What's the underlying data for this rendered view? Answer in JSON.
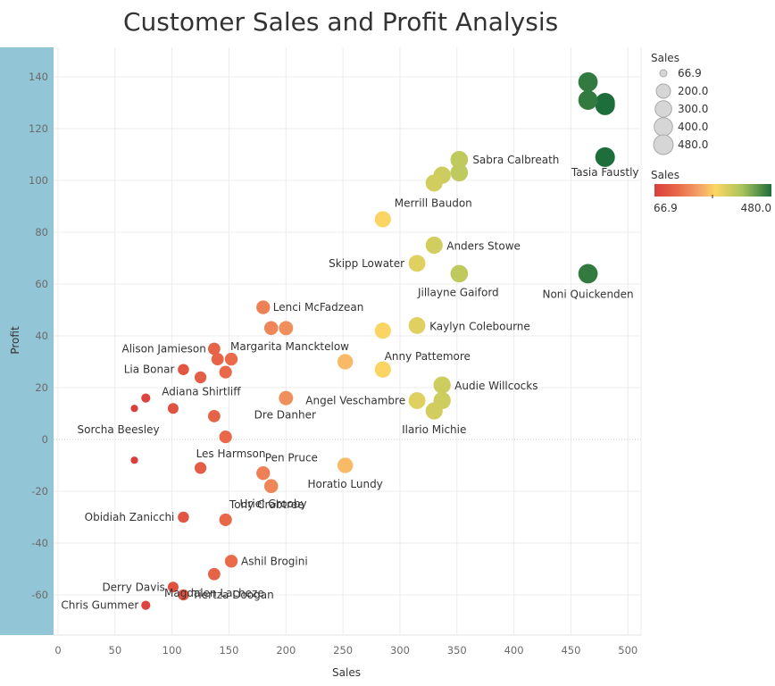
{
  "title": "Customer Sales and Profit Analysis",
  "chart_data": {
    "type": "scatter",
    "title": "Customer Sales and Profit Analysis",
    "xlabel": "Sales",
    "ylabel": "Profit",
    "xlim": [
      0,
      510
    ],
    "ylim": [
      -75,
      150
    ],
    "x_ticks": [
      0,
      50,
      100,
      150,
      200,
      250,
      300,
      350,
      400,
      450,
      500
    ],
    "y_ticks": [
      -60,
      -40,
      -20,
      0,
      20,
      40,
      60,
      80,
      100,
      120,
      140
    ],
    "grid": true,
    "size_encoding": "Sales",
    "color_encoding": "Sales",
    "color_scale": [
      "#d9403b",
      "#f4a86a",
      "#fdd663",
      "#a8c45c",
      "#2d8a4e",
      "#1e6e3b"
    ],
    "points": [
      {
        "x": 465,
        "y": 138,
        "label": ""
      },
      {
        "x": 465,
        "y": 131,
        "label": ""
      },
      {
        "x": 480,
        "y": 130,
        "label": ""
      },
      {
        "x": 480,
        "y": 129,
        "label": ""
      },
      {
        "x": 480,
        "y": 109,
        "label": "Tasia Faustly"
      },
      {
        "x": 465,
        "y": 64,
        "label": "Noni Quickenden"
      },
      {
        "x": 352,
        "y": 108,
        "label": "Sabra Calbreath"
      },
      {
        "x": 352,
        "y": 103,
        "label": ""
      },
      {
        "x": 337,
        "y": 102,
        "label": ""
      },
      {
        "x": 330,
        "y": 99,
        "label": ""
      },
      {
        "x": 285,
        "y": 85,
        "label": "Merrill Baudon"
      },
      {
        "x": 330,
        "y": 75,
        "label": "Anders Stowe"
      },
      {
        "x": 315,
        "y": 68,
        "label": "Skipp Lowater"
      },
      {
        "x": 352,
        "y": 64,
        "label": "Jillayne Gaiford"
      },
      {
        "x": 315,
        "y": 44,
        "label": "Kaylyn Colebourne"
      },
      {
        "x": 285,
        "y": 42,
        "label": ""
      },
      {
        "x": 252,
        "y": 30,
        "label": "Anny Pattemore"
      },
      {
        "x": 285,
        "y": 27,
        "label": ""
      },
      {
        "x": 337,
        "y": 21,
        "label": "Audie Willcocks"
      },
      {
        "x": 315,
        "y": 15,
        "label": "Angel Veschambre"
      },
      {
        "x": 337,
        "y": 15,
        "label": ""
      },
      {
        "x": 330,
        "y": 11,
        "label": "Ilario Michie"
      },
      {
        "x": 180,
        "y": 51,
        "label": "Lenci McFadzean"
      },
      {
        "x": 187,
        "y": 43,
        "label": ""
      },
      {
        "x": 200,
        "y": 43,
        "label": ""
      },
      {
        "x": 137,
        "y": 35,
        "label": "Alison Jamieson"
      },
      {
        "x": 140,
        "y": 31,
        "label": ""
      },
      {
        "x": 152,
        "y": 31,
        "label": "Margarita Mancktelow"
      },
      {
        "x": 110,
        "y": 27,
        "label": "Lia Bonar"
      },
      {
        "x": 147,
        "y": 26,
        "label": ""
      },
      {
        "x": 125,
        "y": 24,
        "label": ""
      },
      {
        "x": 77,
        "y": 16,
        "label": "Adiana Shirtliff"
      },
      {
        "x": 200,
        "y": 16,
        "label": "Dre Danher"
      },
      {
        "x": 67,
        "y": 12,
        "label": "Sorcha Beesley"
      },
      {
        "x": 101,
        "y": 12,
        "label": ""
      },
      {
        "x": 137,
        "y": 9,
        "label": ""
      },
      {
        "x": 147,
        "y": 1,
        "label": ""
      },
      {
        "x": 67,
        "y": -8,
        "label": ""
      },
      {
        "x": 125,
        "y": -11,
        "label": "Les Harmson"
      },
      {
        "x": 180,
        "y": -13,
        "label": "Pen Pruce"
      },
      {
        "x": 252,
        "y": -10,
        "label": "Horatio Lundy"
      },
      {
        "x": 187,
        "y": -18,
        "label": "Tony Crabtree"
      },
      {
        "x": 110,
        "y": -30,
        "label": "Obidiah Zanicchi"
      },
      {
        "x": 147,
        "y": -31,
        "label": "Uriel Grooby"
      },
      {
        "x": 152,
        "y": -47,
        "label": "Ashil Brogini"
      },
      {
        "x": 137,
        "y": -52,
        "label": "Magdalen Lacheze"
      },
      {
        "x": 101,
        "y": -57,
        "label": "Derry Davis"
      },
      {
        "x": 110,
        "y": -60,
        "label": "Tiertza Doogan"
      },
      {
        "x": 77,
        "y": -64,
        "label": "Chris Gummer"
      }
    ]
  },
  "legend_size": {
    "title": "Sales",
    "items": [
      "66.9",
      "200.0",
      "300.0",
      "400.0",
      "480.0"
    ],
    "values": [
      66.9,
      200,
      300,
      400,
      480
    ]
  },
  "legend_color": {
    "title": "Sales",
    "min_label": "66.9",
    "max_label": "480.0"
  }
}
